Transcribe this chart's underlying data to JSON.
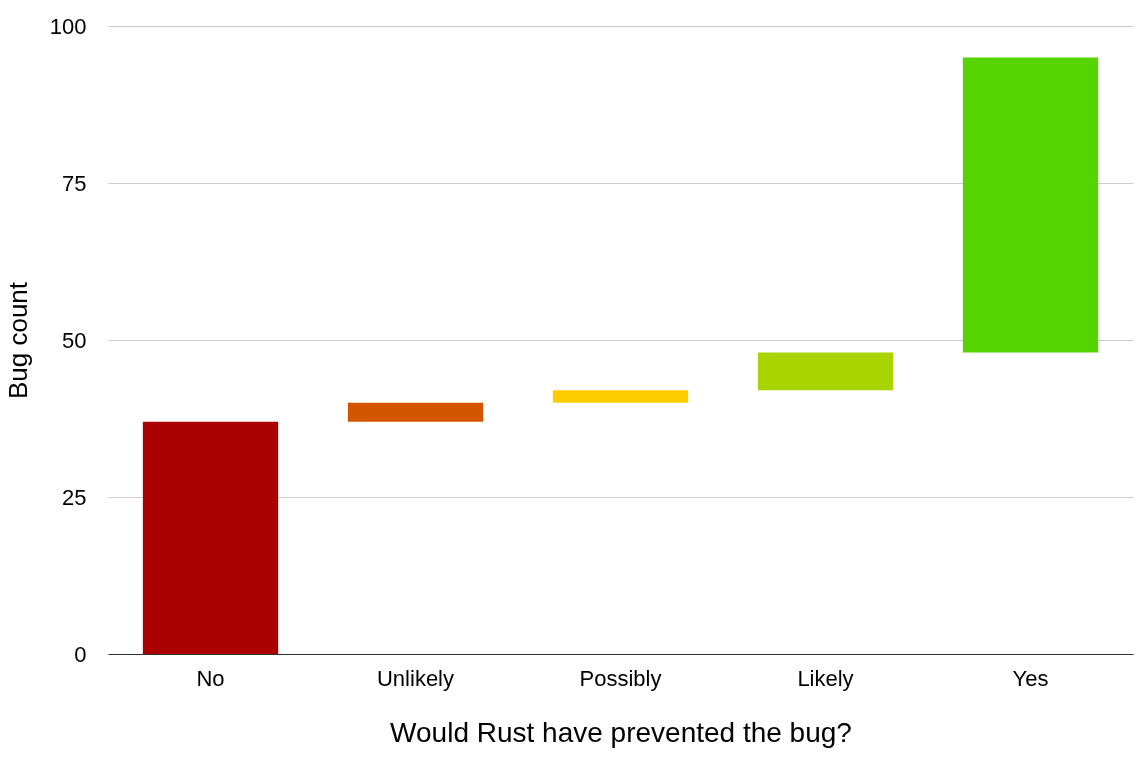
{
  "chart_data": {
    "type": "bar",
    "xlabel": "Would Rust have prevented the bug?",
    "ylabel": "Bug count",
    "categories": [
      "No",
      "Unlikely",
      "Possibly",
      "Likely",
      "Yes"
    ],
    "base": [
      0,
      37,
      40,
      42,
      48
    ],
    "values": [
      37,
      3,
      2,
      6,
      47
    ],
    "colors": [
      "#aa0000",
      "#d45500",
      "#ffcc00",
      "#aad400",
      "#55d400"
    ],
    "ylim": [
      0,
      100
    ],
    "yticks": [
      0,
      25,
      50,
      75,
      100
    ],
    "grid": "y"
  }
}
